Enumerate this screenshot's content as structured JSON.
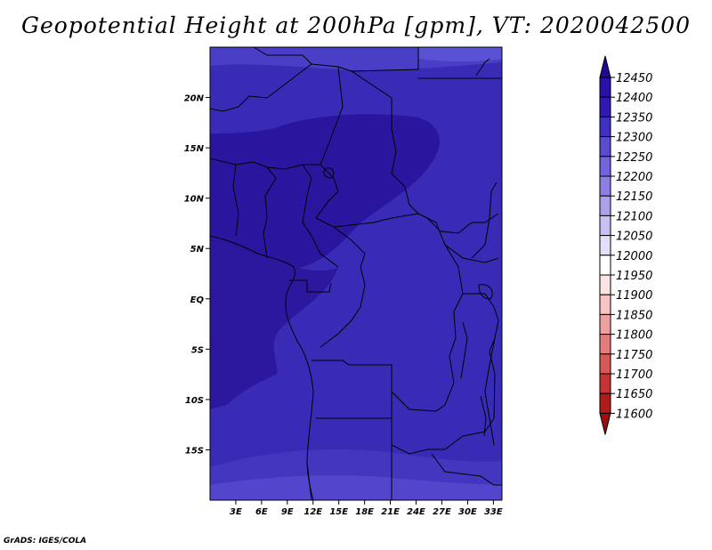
{
  "title": "Geopotential Height at 200hPa [gpm], VT: 2020042500",
  "credit": "GrADS: IGES/COLA",
  "map": {
    "lat_ticks": [
      "20N",
      "15N",
      "10N",
      "5N",
      "EQ",
      "5S",
      "10S",
      "15S"
    ],
    "lon_ticks": [
      "3E",
      "6E",
      "9E",
      "12E",
      "15E",
      "18E",
      "21E",
      "24E",
      "27E",
      "30E",
      "33E"
    ],
    "lon_range": [
      0,
      34
    ],
    "lat_range": [
      -20,
      25
    ]
  },
  "colorbar": {
    "labels": [
      "12450",
      "12400",
      "12350",
      "12300",
      "12250",
      "12200",
      "12150",
      "12100",
      "12050",
      "12000",
      "11950",
      "11900",
      "11850",
      "11800",
      "11750",
      "11700",
      "11650",
      "11600"
    ],
    "colors": [
      "#1f0a96",
      "#2810a8",
      "#3218b0",
      "#4030c2",
      "#5a4cd0",
      "#7264dc",
      "#8c80e6",
      "#aaa0ee",
      "#c6c0f4",
      "#e2dffa",
      "#ffffff",
      "#fbe4e4",
      "#f6c4c4",
      "#eea0a0",
      "#e47c7c",
      "#d85858",
      "#c83434",
      "#b01c1c",
      "#981010"
    ]
  },
  "chart_data": {
    "type": "heatmap",
    "title": "Geopotential Height at 200hPa [gpm], VT: 2020042500",
    "x_ticks": [
      "3E",
      "6E",
      "9E",
      "12E",
      "15E",
      "18E",
      "21E",
      "24E",
      "27E",
      "30E",
      "33E"
    ],
    "y_ticks": [
      "20N",
      "15N",
      "10N",
      "5N",
      "EQ",
      "5S",
      "10S",
      "15S"
    ],
    "xlim": [
      0,
      34
    ],
    "ylim": [
      -20,
      25
    ],
    "levels": [
      11600,
      11650,
      11700,
      11750,
      11800,
      11850,
      11900,
      11950,
      12000,
      12050,
      12100,
      12150,
      12200,
      12250,
      12300,
      12350,
      12400,
      12450
    ],
    "field_range": [
      12250,
      12400
    ]
  }
}
